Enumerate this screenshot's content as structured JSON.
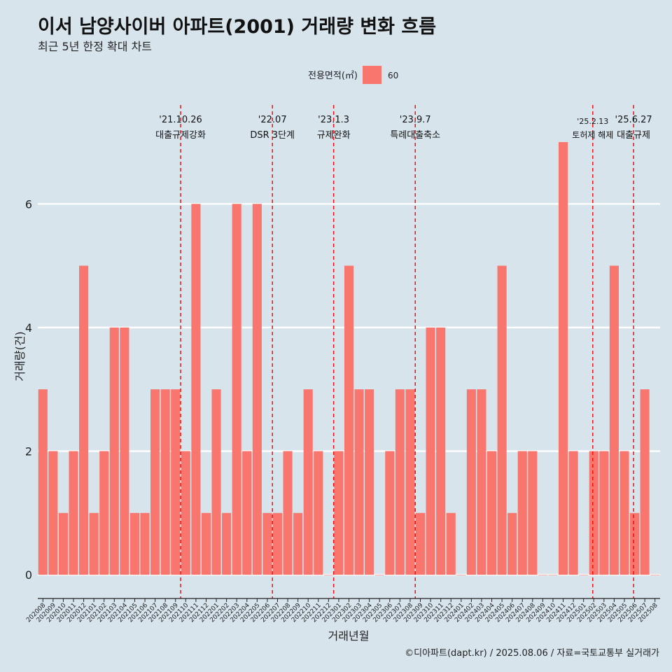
{
  "title": "이서 남양사이버 아파트(2001) 거래량 변화 흐름",
  "subtitle": "최근 5년 한정 확대 차트",
  "caption": "©디아파트(dapt.kr) / 2025.08.06 / 자료=국토교통부 실거래가",
  "chart_data": {
    "type": "bar",
    "xlabel": "거래년월",
    "ylabel": "거래량(건)",
    "legend": {
      "title": "전용면적(㎡)",
      "placement": "top",
      "entries": [
        {
          "name": "60",
          "color": "#f8766d"
        }
      ]
    },
    "bar_color": "#f8766d",
    "ylim": [
      -0.35,
      7.6
    ],
    "yticks": [
      0,
      2,
      4,
      6
    ],
    "grid": true,
    "categories": [
      "202008",
      "202009",
      "202010",
      "202011",
      "202012",
      "202101",
      "202102",
      "202103",
      "202104",
      "202105",
      "202106",
      "202107",
      "202108",
      "202109",
      "202110",
      "202111",
      "202112",
      "202201",
      "202202",
      "202203",
      "202204",
      "202205",
      "202206",
      "202207",
      "202208",
      "202209",
      "202210",
      "202211",
      "202212",
      "202301",
      "202302",
      "202303",
      "202304",
      "202305",
      "202306",
      "202307",
      "202308",
      "202309",
      "202310",
      "202311",
      "202312",
      "202401",
      "202402",
      "202403",
      "202404",
      "202405",
      "202406",
      "202407",
      "202408",
      "202409",
      "202410",
      "202411",
      "202412",
      "202501",
      "202502",
      "202503",
      "202504",
      "202505",
      "202506",
      "202507",
      "202508"
    ],
    "values": [
      3,
      2,
      1,
      2,
      5,
      1,
      2,
      4,
      4,
      1,
      1,
      3,
      3,
      3,
      2,
      6,
      1,
      3,
      1,
      6,
      2,
      6,
      1,
      1,
      2,
      1,
      3,
      2,
      0,
      2,
      5,
      3,
      3,
      0,
      2,
      3,
      3,
      1,
      4,
      4,
      1,
      0,
      3,
      3,
      2,
      5,
      1,
      2,
      2,
      0,
      0,
      7,
      2,
      0,
      2,
      2,
      5,
      2,
      1,
      3,
      0
    ],
    "annotations": [
      {
        "date": "'21.10.26",
        "label": "대출규제강화",
        "x": 14.0
      },
      {
        "date": "'22.07",
        "label": "DSR 3단계",
        "x": 23.0
      },
      {
        "date": "'23.1.3",
        "label": "규제완화",
        "x": 29.0
      },
      {
        "date": "'23.9.7",
        "label": "특례대출축소",
        "x": 37.0
      },
      {
        "date": "'25.2.13",
        "label": "토허제 해제",
        "x": 54.4
      },
      {
        "date": "'25.6.27",
        "label": "대출규제",
        "x": 58.4
      }
    ]
  }
}
